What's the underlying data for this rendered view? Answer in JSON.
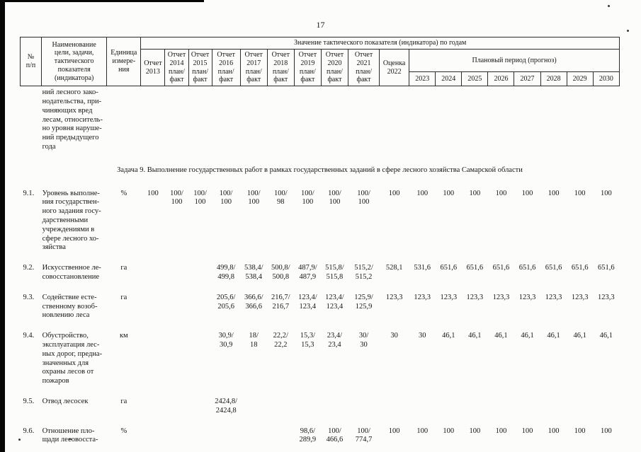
{
  "page": {
    "number": "17"
  },
  "table": {
    "headers": {
      "num": "№\nп/п",
      "name": "Наименование\nцели, задачи,\nтактического\nпоказателя\n(индикатора)",
      "unit": "Единица\nизмере-\nния",
      "values_group": "Значение тактического показателя (индикатора) по годам",
      "report_cols": [
        "Отчет\n2013",
        "Отчет\n2014\nплан/\nфакт",
        "Отчет\n2015\nплан/\nфакт",
        "Отчет\n2016\nплан/\nфакт",
        "Отчет\n2017\nплан/\nфакт",
        "Отчет\n2018\nплан/\nфакт",
        "Отчет\n2019\nплан/\nфакт",
        "Отчет\n2020\nплан/\nфакт",
        "Отчет\n2021\nплан/\nфакт",
        "Оценка\n2022"
      ],
      "plan_group": "Плановый период (прогноз)",
      "plan_years": [
        "2023",
        "2024",
        "2025",
        "2026",
        "2027",
        "2028",
        "2029",
        "2030"
      ]
    },
    "rows_before_section": [
      {
        "num": "",
        "name": "ний лесного зако-\nнодательства, при-\nчиняющих вред\nлесам, относитель-\nно уровня наруше-\nний предыдущего\nгода",
        "unit": "",
        "values": [
          "",
          "",
          "",
          "",
          "",
          "",
          "",
          "",
          "",
          "",
          "",
          "",
          "",
          "",
          "",
          "",
          "",
          ""
        ]
      }
    ],
    "section_title": "Задача 9. Выполнение государственных работ в рамках государственных заданий в сфере лесного хозяйства Самарской области",
    "rows": [
      {
        "num": "9.1.",
        "name": "Уровень выполне-\nния государствен-\nного задания госу-\nдарственными\nучреждениями в\nсфере лесного хо-\nзяйства",
        "unit": "%",
        "values": [
          "100",
          "100/\n100",
          "100/\n100",
          "100/\n100",
          "100/\n100",
          "100/\n98",
          "100/\n100",
          "100/\n100",
          "100/\n100",
          "100",
          "100",
          "100",
          "100",
          "100",
          "100",
          "100",
          "100",
          "100"
        ]
      },
      {
        "num": "9.2.",
        "name": "Искусственное ле-\nсовосстановление",
        "unit": "га",
        "values": [
          "",
          "",
          "",
          "499,8/\n499,8",
          "538,4/\n538,4",
          "500,8/\n500,8",
          "487,9/\n487,9",
          "515,8/\n515,8",
          "515,2/\n515,2",
          "528,1",
          "531,6",
          "651,6",
          "651,6",
          "651,6",
          "651,6",
          "651,6",
          "651,6",
          "651,6"
        ]
      },
      {
        "num": "9.3.",
        "name": "Содействие есте-\nственному возоб-\nновлению леса",
        "unit": "га",
        "values": [
          "",
          "",
          "",
          "205,6/\n205,6",
          "366,6/\n366,6",
          "216,7/\n216,7",
          "123,4/\n123,4",
          "123,4/\n123,4",
          "125,9/\n125,9",
          "123,3",
          "123,3",
          "123,3",
          "123,3",
          "123,3",
          "123,3",
          "123,3",
          "123,3",
          "123,3"
        ]
      },
      {
        "num": "9.4.",
        "name": "Обустройство,\nэксплуатация лес-\nных дорог, предна-\nзначенных для\nохраны лесов от\nпожаров",
        "unit": "км",
        "values": [
          "",
          "",
          "",
          "30,9/\n30,9",
          "18/\n18",
          "22,2/\n22,2",
          "15,3/\n15,3",
          "23,4/\n23,4",
          "30/\n30",
          "30",
          "30",
          "46,1",
          "46,1",
          "46,1",
          "46,1",
          "46,1",
          "46,1",
          "46,1"
        ]
      },
      {
        "num": "9.5.",
        "name": "Отвод лесосек",
        "unit": "га",
        "values": [
          "",
          "",
          "",
          "2424,8/\n2424,8",
          "",
          "",
          "",
          "",
          "",
          "",
          "",
          "",
          "",
          "",
          "",
          "",
          "",
          ""
        ]
      },
      {
        "num": "9.6.",
        "name": "Отношение пло-\nщади лесовосста-",
        "unit": "%",
        "values": [
          "",
          "",
          "",
          "",
          "",
          "",
          "98,6/\n289,9",
          "100/\n466,6",
          "100/\n774,7",
          "100",
          "100",
          "100",
          "100",
          "100",
          "100",
          "100",
          "100",
          "100"
        ]
      }
    ]
  }
}
